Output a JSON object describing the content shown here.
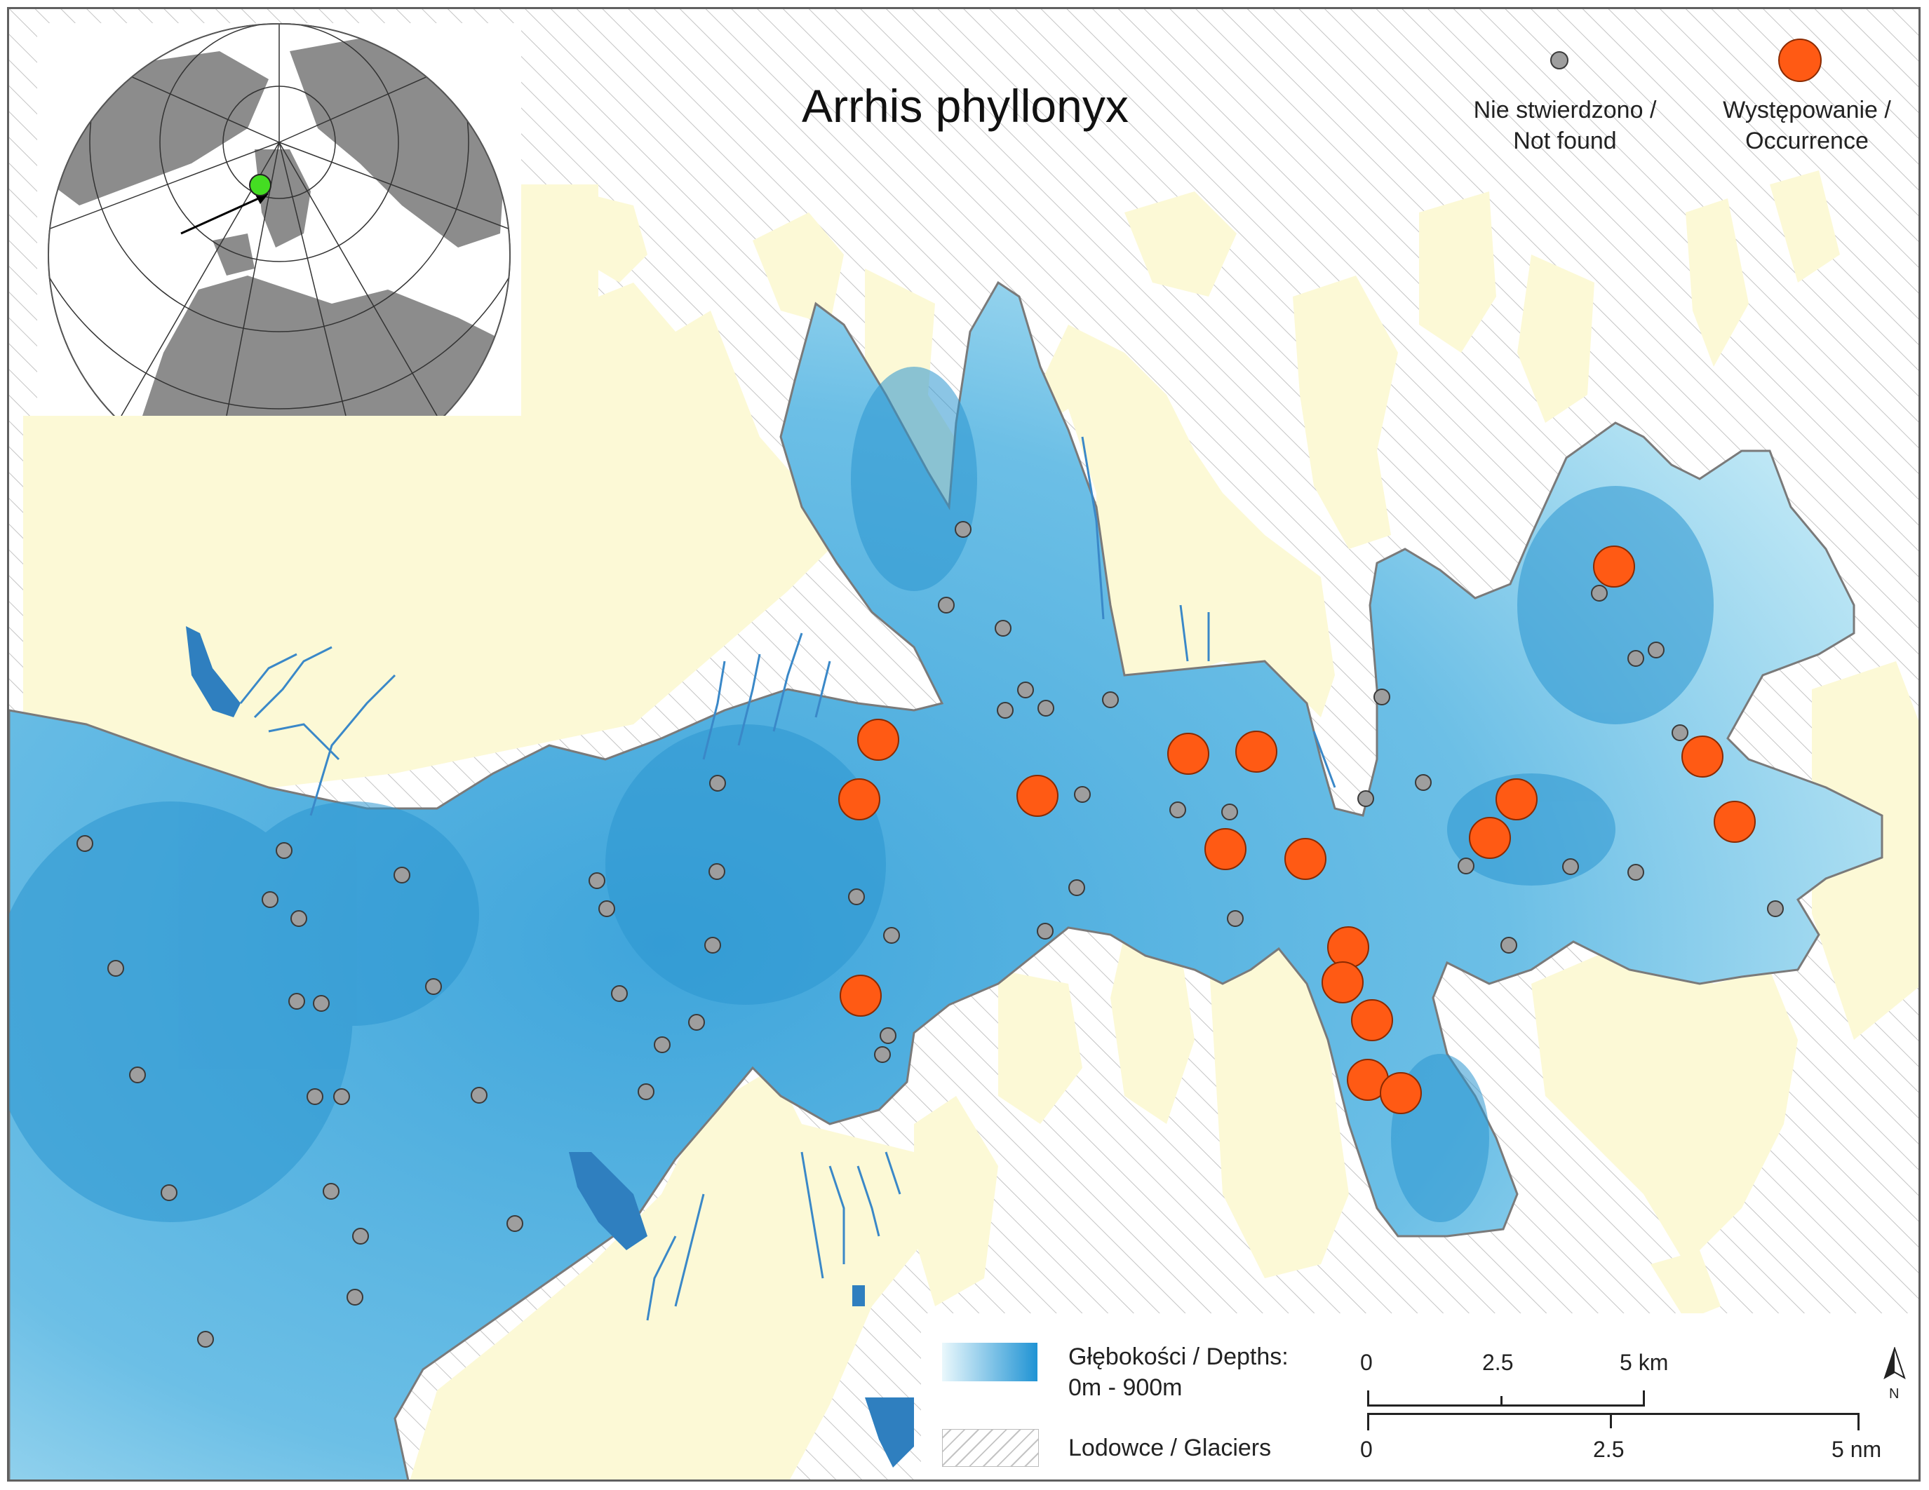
{
  "title": "Arrhis phyllonyx",
  "legend": {
    "not_found": "Nie stwierdzono /\nNot found",
    "occurrence": "Występowanie /\nOccurrence",
    "depths": "Głębokości / Depths:\n0m - 900m",
    "glaciers": "Lodowce / Glaciers"
  },
  "scale": {
    "km_labels": [
      "0",
      "2.5",
      "5 km"
    ],
    "nm_labels": [
      "0",
      "2.5",
      "5 nm"
    ]
  },
  "north_arrow": "N",
  "colors": {
    "sea_deep": "#2a96d2",
    "sea_shallow": "#d8f0f8",
    "land": "#fcf9d6",
    "glacier_hatch": "#bdbdbd",
    "not_found_point": "#9e9e9e",
    "occurrence_point": "#ff5a14",
    "inset_land": "#8a8a8a",
    "inset_location": "#44dd22"
  },
  "points": {
    "not_found": [
      [
        118,
        1200
      ],
      [
        402,
        1210
      ],
      [
        570,
        1245
      ],
      [
        382,
        1280
      ],
      [
        423,
        1307
      ],
      [
        162,
        1378
      ],
      [
        420,
        1425
      ],
      [
        455,
        1428
      ],
      [
        615,
        1404
      ],
      [
        193,
        1530
      ],
      [
        446,
        1561
      ],
      [
        484,
        1561
      ],
      [
        680,
        1559
      ],
      [
        238,
        1698
      ],
      [
        469,
        1696
      ],
      [
        511,
        1760
      ],
      [
        503,
        1847
      ],
      [
        290,
        1907
      ],
      [
        731,
        1742
      ],
      [
        918,
        1554
      ],
      [
        941,
        1487
      ],
      [
        990,
        1455
      ],
      [
        880,
        1414
      ],
      [
        862,
        1293
      ],
      [
        848,
        1253
      ],
      [
        1019,
        1240
      ],
      [
        1013,
        1345
      ],
      [
        1020,
        1114
      ],
      [
        1255,
        1501
      ],
      [
        1268,
        1331
      ],
      [
        1218,
        1276
      ],
      [
        1263,
        1474
      ],
      [
        1487,
        1325
      ],
      [
        1532,
        1263
      ],
      [
        1488,
        1007
      ],
      [
        1430,
        1010
      ],
      [
        1459,
        981
      ],
      [
        1580,
        995
      ],
      [
        1540,
        1130
      ],
      [
        1676,
        1152
      ],
      [
        1750,
        1155
      ],
      [
        1758,
        1307
      ],
      [
        1346,
        860
      ],
      [
        1427,
        893
      ],
      [
        1370,
        752
      ],
      [
        1967,
        991
      ],
      [
        2026,
        1113
      ],
      [
        2087,
        1232
      ],
      [
        2236,
        1233
      ],
      [
        2148,
        1345
      ],
      [
        2329,
        1241
      ],
      [
        2329,
        936
      ],
      [
        2528,
        1293
      ],
      [
        2392,
        1042
      ],
      [
        2358,
        924
      ],
      [
        2277,
        843
      ],
      [
        1944,
        1136
      ]
    ],
    "occurrence": [
      [
        1249,
        1052
      ],
      [
        1222,
        1137
      ],
      [
        1476,
        1132
      ],
      [
        1691,
        1072
      ],
      [
        1788,
        1069
      ],
      [
        1744,
        1208
      ],
      [
        1858,
        1222
      ],
      [
        2121,
        1192
      ],
      [
        2159,
        1137
      ],
      [
        1919,
        1348
      ],
      [
        1911,
        1398
      ],
      [
        1953,
        1452
      ],
      [
        1947,
        1537
      ],
      [
        1994,
        1556
      ],
      [
        1224,
        1417
      ],
      [
        2298,
        805
      ],
      [
        2424,
        1076
      ],
      [
        2470,
        1169
      ]
    ]
  }
}
